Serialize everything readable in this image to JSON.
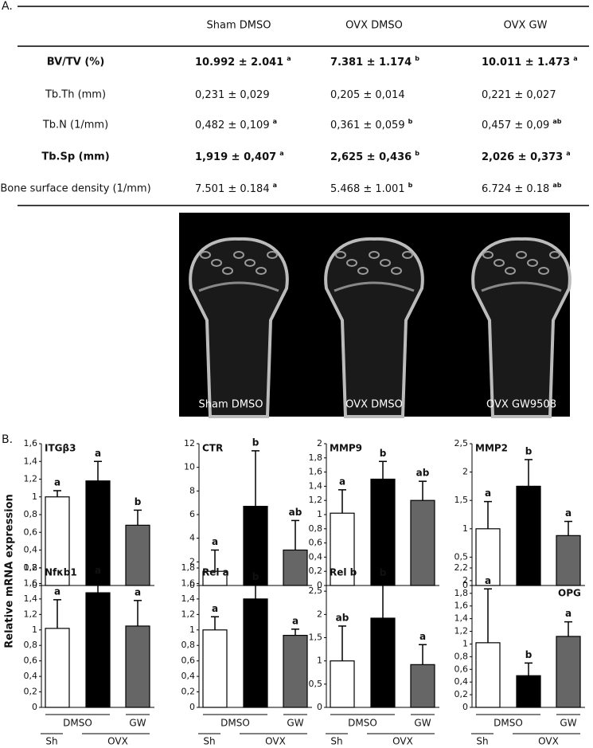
{
  "panel_a_label": "A.",
  "table": {
    "columns": [
      "Sham DMSO",
      "OVX DMSO",
      "OVX GW"
    ],
    "rows": [
      {
        "label": "BV/TV (%)",
        "bold": true,
        "cells": [
          {
            "text": "10.992  ±  2.041",
            "sup": "a"
          },
          {
            "text": "7.381   ±  1.174",
            "sup": "b"
          },
          {
            "text": "10.011  ±  1.473",
            "sup": "a"
          }
        ]
      },
      {
        "label": "Tb.Th (mm)",
        "bold": false,
        "cells": [
          {
            "text": "0,231  ±  0,029",
            "sup": null
          },
          {
            "text": "0,205   ±   0,014",
            "sup": null
          },
          {
            "text": "0,221  ±  0,027",
            "sup": null
          }
        ]
      },
      {
        "label": "Tb.N (1/mm)",
        "bold": false,
        "cells": [
          {
            "text": "0,482  ±  0,109",
            "sup": "a"
          },
          {
            "text": "0,361   ±  0,059",
            "sup": "b"
          },
          {
            "text": "0,457  ±  0,09",
            "sup": "ab"
          }
        ]
      },
      {
        "label": "Tb.Sp (mm)",
        "bold": true,
        "cells": [
          {
            "text": "1,919  ±  0,407",
            "sup": "a"
          },
          {
            "text": "2,625   ±   0,436",
            "sup": "b"
          },
          {
            "text": "2,026  ±  0,373",
            "sup": "a"
          }
        ]
      },
      {
        "label": "Bone surface density (1/mm)",
        "bold": false,
        "cells": [
          {
            "text": "7.501  ±  0.184",
            "sup": "a"
          },
          {
            "text": "5.468   ±  1.001",
            "sup": "b"
          },
          {
            "text": "6.724  ±  0.18",
            "sup": "ab"
          }
        ]
      }
    ]
  },
  "image_labels": [
    "Sham DMSO",
    "OVX DMSO",
    "OVX GW9508"
  ],
  "panel_b_label": "B.",
  "ylabel": "Relative mRNA expression",
  "chart_data": [
    {
      "type": "bar",
      "title": "ITGβ3",
      "values": [
        1.0,
        1.18,
        0.68
      ],
      "errors": [
        0.07,
        0.22,
        0.17
      ],
      "colors": [
        "#ffffff",
        "#000000",
        "#666666"
      ],
      "annotations": [
        "a",
        "a",
        "b"
      ],
      "ylim": [
        0,
        1.6
      ],
      "yticks": [
        0,
        {
          "value": 0.2,
          "label": "0,2"
        },
        {
          "value": 0.4,
          "label": "0,4"
        },
        {
          "value": 0.6,
          "label": "0,6"
        },
        {
          "value": 0.8,
          "label": "0,8"
        },
        1,
        {
          "value": 1.2,
          "label": "1,2"
        },
        {
          "value": 1.4,
          "label": "1,4"
        },
        {
          "value": 1.6,
          "label": "1,6"
        }
      ]
    },
    {
      "type": "bar",
      "title": "CTR",
      "values": [
        1.2,
        6.7,
        3.0
      ],
      "errors": [
        1.8,
        4.7,
        2.5
      ],
      "colors": [
        "#ffffff",
        "#000000",
        "#666666"
      ],
      "annotations": [
        "a",
        "b",
        "ab"
      ],
      "ylim": [
        0,
        12
      ],
      "yticks": [
        0,
        2,
        4,
        6,
        8,
        10,
        12
      ]
    },
    {
      "type": "bar",
      "title": "MMP9",
      "values": [
        1.02,
        1.5,
        1.2
      ],
      "errors": [
        0.33,
        0.25,
        0.27
      ],
      "colors": [
        "#ffffff",
        "#000000",
        "#666666"
      ],
      "annotations": [
        "a",
        "b",
        "ab"
      ],
      "ylim": [
        0,
        2
      ],
      "yticks": [
        0,
        {
          "value": 0.2,
          "label": "0,2"
        },
        {
          "value": 0.4,
          "label": "0,4"
        },
        {
          "value": 0.6,
          "label": "0,6"
        },
        {
          "value": 0.8,
          "label": "0,8"
        },
        1,
        {
          "value": 1.2,
          "label": "1,2"
        },
        {
          "value": 1.4,
          "label": "1,4"
        },
        {
          "value": 1.6,
          "label": "1,6"
        },
        {
          "value": 1.8,
          "label": "1,8"
        },
        2
      ]
    },
    {
      "type": "bar",
      "title": "MMP2",
      "values": [
        1.0,
        1.75,
        0.88
      ],
      "errors": [
        0.48,
        0.47,
        0.25
      ],
      "colors": [
        "#ffffff",
        "#000000",
        "#666666"
      ],
      "annotations": [
        "a",
        "b",
        "a"
      ],
      "ylim": [
        0,
        2.5
      ],
      "yticks": [
        0,
        {
          "value": 0.5,
          "label": "0,5"
        },
        1,
        {
          "value": 1.5,
          "label": "1,5"
        },
        2,
        {
          "value": 2.5,
          "label": "2,5"
        }
      ]
    },
    {
      "type": "bar",
      "title": "Nfκb1",
      "values": [
        1.02,
        1.48,
        1.05
      ],
      "errors": [
        0.37,
        0.18,
        0.33
      ],
      "colors": [
        "#ffffff",
        "#000000",
        "#666666"
      ],
      "annotations": [
        "a",
        "a",
        "a"
      ],
      "ylim": [
        0,
        1.8
      ],
      "yticks": [
        0,
        {
          "value": 0.2,
          "label": "0,2"
        },
        {
          "value": 0.4,
          "label": "0,4"
        },
        {
          "value": 0.6,
          "label": "0,6"
        },
        {
          "value": 0.8,
          "label": "0,8"
        },
        1,
        {
          "value": 1.2,
          "label": "1,2"
        },
        {
          "value": 1.4,
          "label": "1,4"
        },
        {
          "value": 1.6,
          "label": "1,6"
        },
        {
          "value": 1.8,
          "label": "1,8"
        }
      ],
      "treatment_labels": [
        "DMSO",
        "GW"
      ],
      "group_labels": [
        "Sh",
        "OVX"
      ]
    },
    {
      "type": "bar",
      "title": "Rel a",
      "values": [
        1.0,
        1.4,
        0.93
      ],
      "errors": [
        0.17,
        0.18,
        0.08
      ],
      "colors": [
        "#ffffff",
        "#000000",
        "#666666"
      ],
      "annotations": [
        "a",
        "b",
        "a"
      ],
      "ylim": [
        0,
        1.8
      ],
      "yticks": [
        0,
        {
          "value": 0.2,
          "label": "0,2"
        },
        {
          "value": 0.4,
          "label": "0,4"
        },
        {
          "value": 0.6,
          "label": "0,6"
        },
        {
          "value": 0.8,
          "label": "0,8"
        },
        1,
        {
          "value": 1.2,
          "label": "1,2"
        },
        {
          "value": 1.4,
          "label": "1,4"
        },
        {
          "value": 1.6,
          "label": "1,6"
        },
        {
          "value": 1.8,
          "label": "1,8"
        }
      ],
      "treatment_labels": [
        "DMSO",
        "GW"
      ],
      "group_labels": [
        "Sh",
        "OVX"
      ]
    },
    {
      "type": "bar",
      "title": "Rel b",
      "values": [
        1.0,
        1.92,
        0.92
      ],
      "errors": [
        0.75,
        0.8,
        0.43
      ],
      "colors": [
        "#ffffff",
        "#000000",
        "#666666"
      ],
      "annotations": [
        "ab",
        "b",
        "a"
      ],
      "ylim": [
        0,
        3
      ],
      "yticks": [
        0,
        {
          "value": 0.5,
          "label": "0,5"
        },
        1,
        {
          "value": 1.5,
          "label": "1,5"
        },
        2,
        {
          "value": 2.5,
          "label": "2,5"
        }
      ],
      "treatment_labels": [
        "DMSO",
        "GW"
      ],
      "group_labels": [
        "Sh",
        "OVX"
      ]
    },
    {
      "type": "bar",
      "title": "OPG",
      "values": [
        1.02,
        0.5,
        1.12
      ],
      "errors": [
        0.85,
        0.2,
        0.23
      ],
      "colors": [
        "#ffffff",
        "#000000",
        "#666666"
      ],
      "annotations": [
        "a",
        "b",
        "a"
      ],
      "ylim": [
        0,
        2.2
      ],
      "yticks": [
        0,
        {
          "value": 0.2,
          "label": "0,2"
        },
        {
          "value": 0.4,
          "label": "0,4"
        },
        {
          "value": 0.6,
          "label": "0,6"
        },
        {
          "value": 0.8,
          "label": "0,8"
        },
        1,
        {
          "value": 1.2,
          "label": "1,2"
        },
        {
          "value": 1.4,
          "label": "1,4"
        },
        {
          "value": 1.6,
          "label": "1,6"
        },
        {
          "value": 1.8,
          "label": "1,8"
        },
        2,
        {
          "value": 2.2,
          "label": "2,2"
        }
      ],
      "treatment_labels": [
        "DMSO",
        "GW"
      ],
      "group_labels": [
        "Sh",
        "OVX"
      ]
    }
  ]
}
